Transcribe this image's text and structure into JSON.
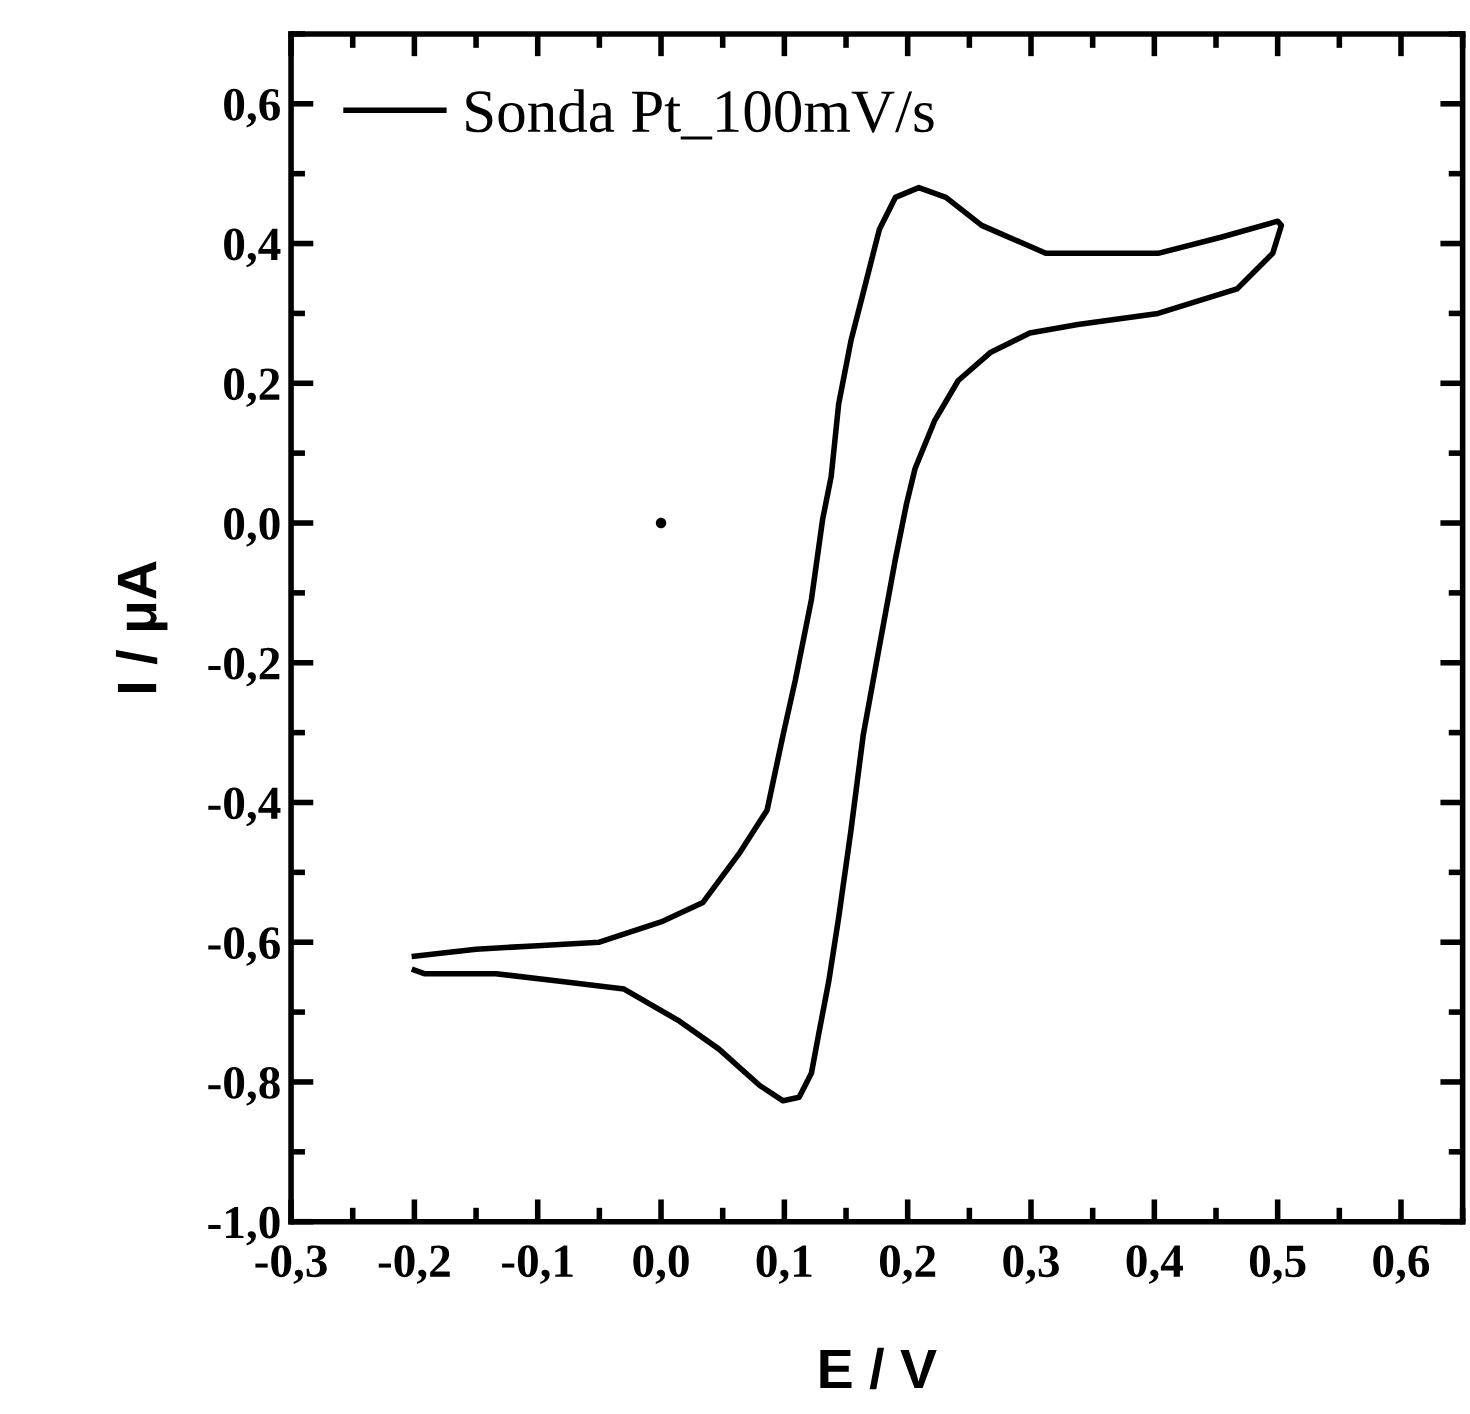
{
  "chart_data": {
    "type": "line",
    "xlabel": "E / V",
    "ylabel": "I / μA",
    "xlim": [
      -0.3,
      0.65
    ],
    "ylim": [
      -1.0,
      0.7
    ],
    "xticks": [
      {
        "value": -0.3,
        "label": "-0,3"
      },
      {
        "value": -0.2,
        "label": "-0,2"
      },
      {
        "value": -0.1,
        "label": "-0,1"
      },
      {
        "value": 0.0,
        "label": "0,0"
      },
      {
        "value": 0.1,
        "label": "0,1"
      },
      {
        "value": 0.2,
        "label": "0,2"
      },
      {
        "value": 0.3,
        "label": "0,3"
      },
      {
        "value": 0.4,
        "label": "0,4"
      },
      {
        "value": 0.5,
        "label": "0,5"
      },
      {
        "value": 0.6,
        "label": "0,6"
      }
    ],
    "yticks": [
      {
        "value": -1.0,
        "label": "-1,0"
      },
      {
        "value": -0.8,
        "label": "-0,8"
      },
      {
        "value": -0.6,
        "label": "-0,6"
      },
      {
        "value": -0.4,
        "label": "-0,4"
      },
      {
        "value": -0.2,
        "label": "-0,2"
      },
      {
        "value": 0.0,
        "label": "0,0"
      },
      {
        "value": 0.2,
        "label": "0,2"
      },
      {
        "value": 0.4,
        "label": "0,4"
      },
      {
        "value": 0.6,
        "label": "0,6"
      }
    ],
    "grid": false,
    "legend": "top left",
    "marker": "none",
    "line_style": "solid",
    "series": [
      {
        "name": "Sonda Pt_100mV/s",
        "color": "#000000",
        "x": [
          -0.2,
          -0.15,
          -0.1,
          -0.05,
          0.0,
          0.034,
          0.063,
          0.086,
          0.099,
          0.109,
          0.122,
          0.131,
          0.138,
          0.144,
          0.154,
          0.164,
          0.177,
          0.19,
          0.209,
          0.231,
          0.26,
          0.312,
          0.403,
          0.454,
          0.5,
          0.503,
          0.496,
          0.467,
          0.403,
          0.338,
          0.299,
          0.267,
          0.241,
          0.222,
          0.206,
          0.199,
          0.19,
          0.177,
          0.164,
          0.154,
          0.144,
          0.136,
          0.128,
          0.122,
          0.112,
          0.099,
          0.08,
          0.047,
          0.015,
          -0.03,
          -0.082,
          -0.134,
          -0.192,
          -0.2
        ],
        "values": [
          -0.62,
          -0.61,
          -0.605,
          -0.6,
          -0.571,
          -0.543,
          -0.474,
          -0.411,
          -0.303,
          -0.224,
          -0.109,
          0.005,
          0.067,
          0.17,
          0.261,
          0.33,
          0.42,
          0.466,
          0.48,
          0.466,
          0.426,
          0.386,
          0.386,
          0.409,
          0.432,
          0.426,
          0.386,
          0.335,
          0.3,
          0.284,
          0.272,
          0.244,
          0.204,
          0.147,
          0.078,
          0.027,
          -0.052,
          -0.177,
          -0.303,
          -0.44,
          -0.565,
          -0.656,
          -0.73,
          -0.787,
          -0.822,
          -0.827,
          -0.805,
          -0.753,
          -0.713,
          -0.667,
          -0.656,
          -0.645,
          -0.645,
          -0.64
        ]
      },
      {
        "type": "scatter",
        "marker": "circle",
        "color": "#000000",
        "x": [
          0.0
        ],
        "values": [
          0.0
        ]
      }
    ]
  }
}
